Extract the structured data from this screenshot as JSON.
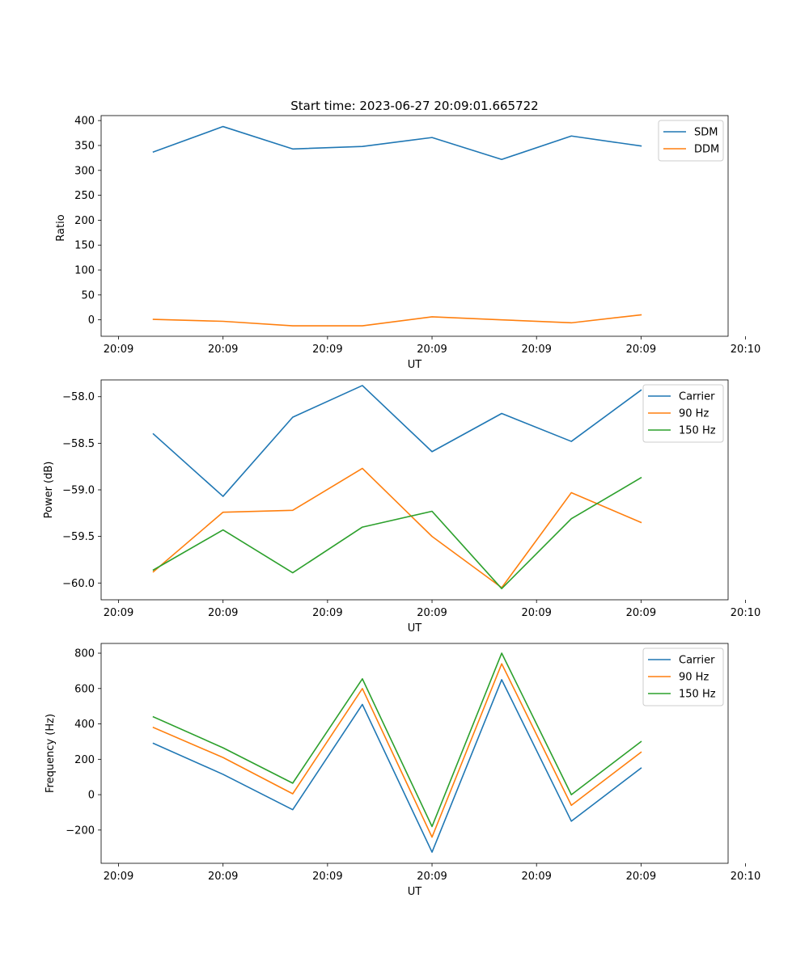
{
  "figure": {
    "title": "Start time: 2023-06-27 20:09:01.665722"
  },
  "colors": {
    "blue": "#1f77b4",
    "orange": "#ff7f0e",
    "green": "#2ca02c"
  },
  "chart_data": [
    {
      "type": "line",
      "title": "Start time: 2023-06-27 20:09:01.665722",
      "xlabel": "UT",
      "ylabel": "Ratio",
      "x": [
        1,
        2,
        3,
        4,
        5,
        6,
        7,
        8
      ],
      "xlim": [
        0.25,
        9.25
      ],
      "x_ticks": [
        0.5,
        2,
        3.5,
        5,
        6.5,
        8,
        9.5
      ],
      "x_tick_labels": [
        "20:09",
        "20:09",
        "20:09",
        "20:09",
        "20:09",
        "20:09",
        "20:10"
      ],
      "ylim": [
        -33,
        410
      ],
      "y_ticks": [
        0,
        50,
        100,
        150,
        200,
        250,
        300,
        350,
        400
      ],
      "y_tick_labels": [
        "0",
        "50",
        "100",
        "150",
        "200",
        "250",
        "300",
        "350",
        "400"
      ],
      "legend_loc": "top-right",
      "series": [
        {
          "name": "SDM",
          "color": "#1f77b4",
          "values": [
            337,
            388,
            343,
            348,
            366,
            322,
            369,
            349
          ]
        },
        {
          "name": "DDM",
          "color": "#ff7f0e",
          "values": [
            1,
            -3,
            -12,
            -12,
            6,
            0,
            -6,
            10
          ]
        }
      ]
    },
    {
      "type": "line",
      "xlabel": "UT",
      "ylabel": "Power (dB)",
      "x": [
        1,
        2,
        3,
        4,
        5,
        6,
        7,
        8
      ],
      "xlim": [
        0.25,
        9.25
      ],
      "x_ticks": [
        0.5,
        2,
        3.5,
        5,
        6.5,
        8,
        9.5
      ],
      "x_tick_labels": [
        "20:09",
        "20:09",
        "20:09",
        "20:09",
        "20:09",
        "20:09",
        "20:10"
      ],
      "ylim": [
        -60.18,
        -57.82
      ],
      "y_ticks": [
        -60,
        -59.5,
        -59,
        -58.5,
        -58
      ],
      "y_tick_labels": [
        "−60.0",
        "−59.5",
        "−59.0",
        "−58.5",
        "−58.0"
      ],
      "legend_loc": "top-right",
      "series": [
        {
          "name": "Carrier",
          "color": "#1f77b4",
          "values": [
            -58.4,
            -59.07,
            -58.22,
            -57.88,
            -58.59,
            -58.18,
            -58.48,
            -57.93
          ]
        },
        {
          "name": "90 Hz",
          "color": "#ff7f0e",
          "values": [
            -59.88,
            -59.24,
            -59.22,
            -58.77,
            -59.5,
            -60.05,
            -59.03,
            -59.35
          ]
        },
        {
          "name": "150 Hz",
          "color": "#2ca02c",
          "values": [
            -59.86,
            -59.43,
            -59.89,
            -59.4,
            -59.23,
            -60.06,
            -59.31,
            -58.87
          ]
        }
      ]
    },
    {
      "type": "line",
      "xlabel": "UT",
      "ylabel": "Frequency (Hz)",
      "x": [
        1,
        2,
        3,
        4,
        5,
        6,
        7,
        8
      ],
      "xlim": [
        0.25,
        9.25
      ],
      "x_ticks": [
        0.5,
        2,
        3.5,
        5,
        6.5,
        8,
        9.5
      ],
      "x_tick_labels": [
        "20:09",
        "20:09",
        "20:09",
        "20:09",
        "20:09",
        "20:09",
        "20:10"
      ],
      "ylim": [
        -388,
        855
      ],
      "y_ticks": [
        -200,
        0,
        200,
        400,
        600,
        800
      ],
      "y_tick_labels": [
        "−200",
        "0",
        "200",
        "400",
        "600",
        "800"
      ],
      "legend_loc": "top-right",
      "series": [
        {
          "name": "Carrier",
          "color": "#1f77b4",
          "values": [
            290,
            115,
            -85,
            510,
            -325,
            650,
            -150,
            150
          ]
        },
        {
          "name": "90 Hz",
          "color": "#ff7f0e",
          "values": [
            380,
            210,
            5,
            600,
            -240,
            740,
            -60,
            240
          ]
        },
        {
          "name": "150 Hz",
          "color": "#2ca02c",
          "values": [
            440,
            265,
            65,
            655,
            -180,
            800,
            0,
            300
          ]
        }
      ]
    }
  ]
}
